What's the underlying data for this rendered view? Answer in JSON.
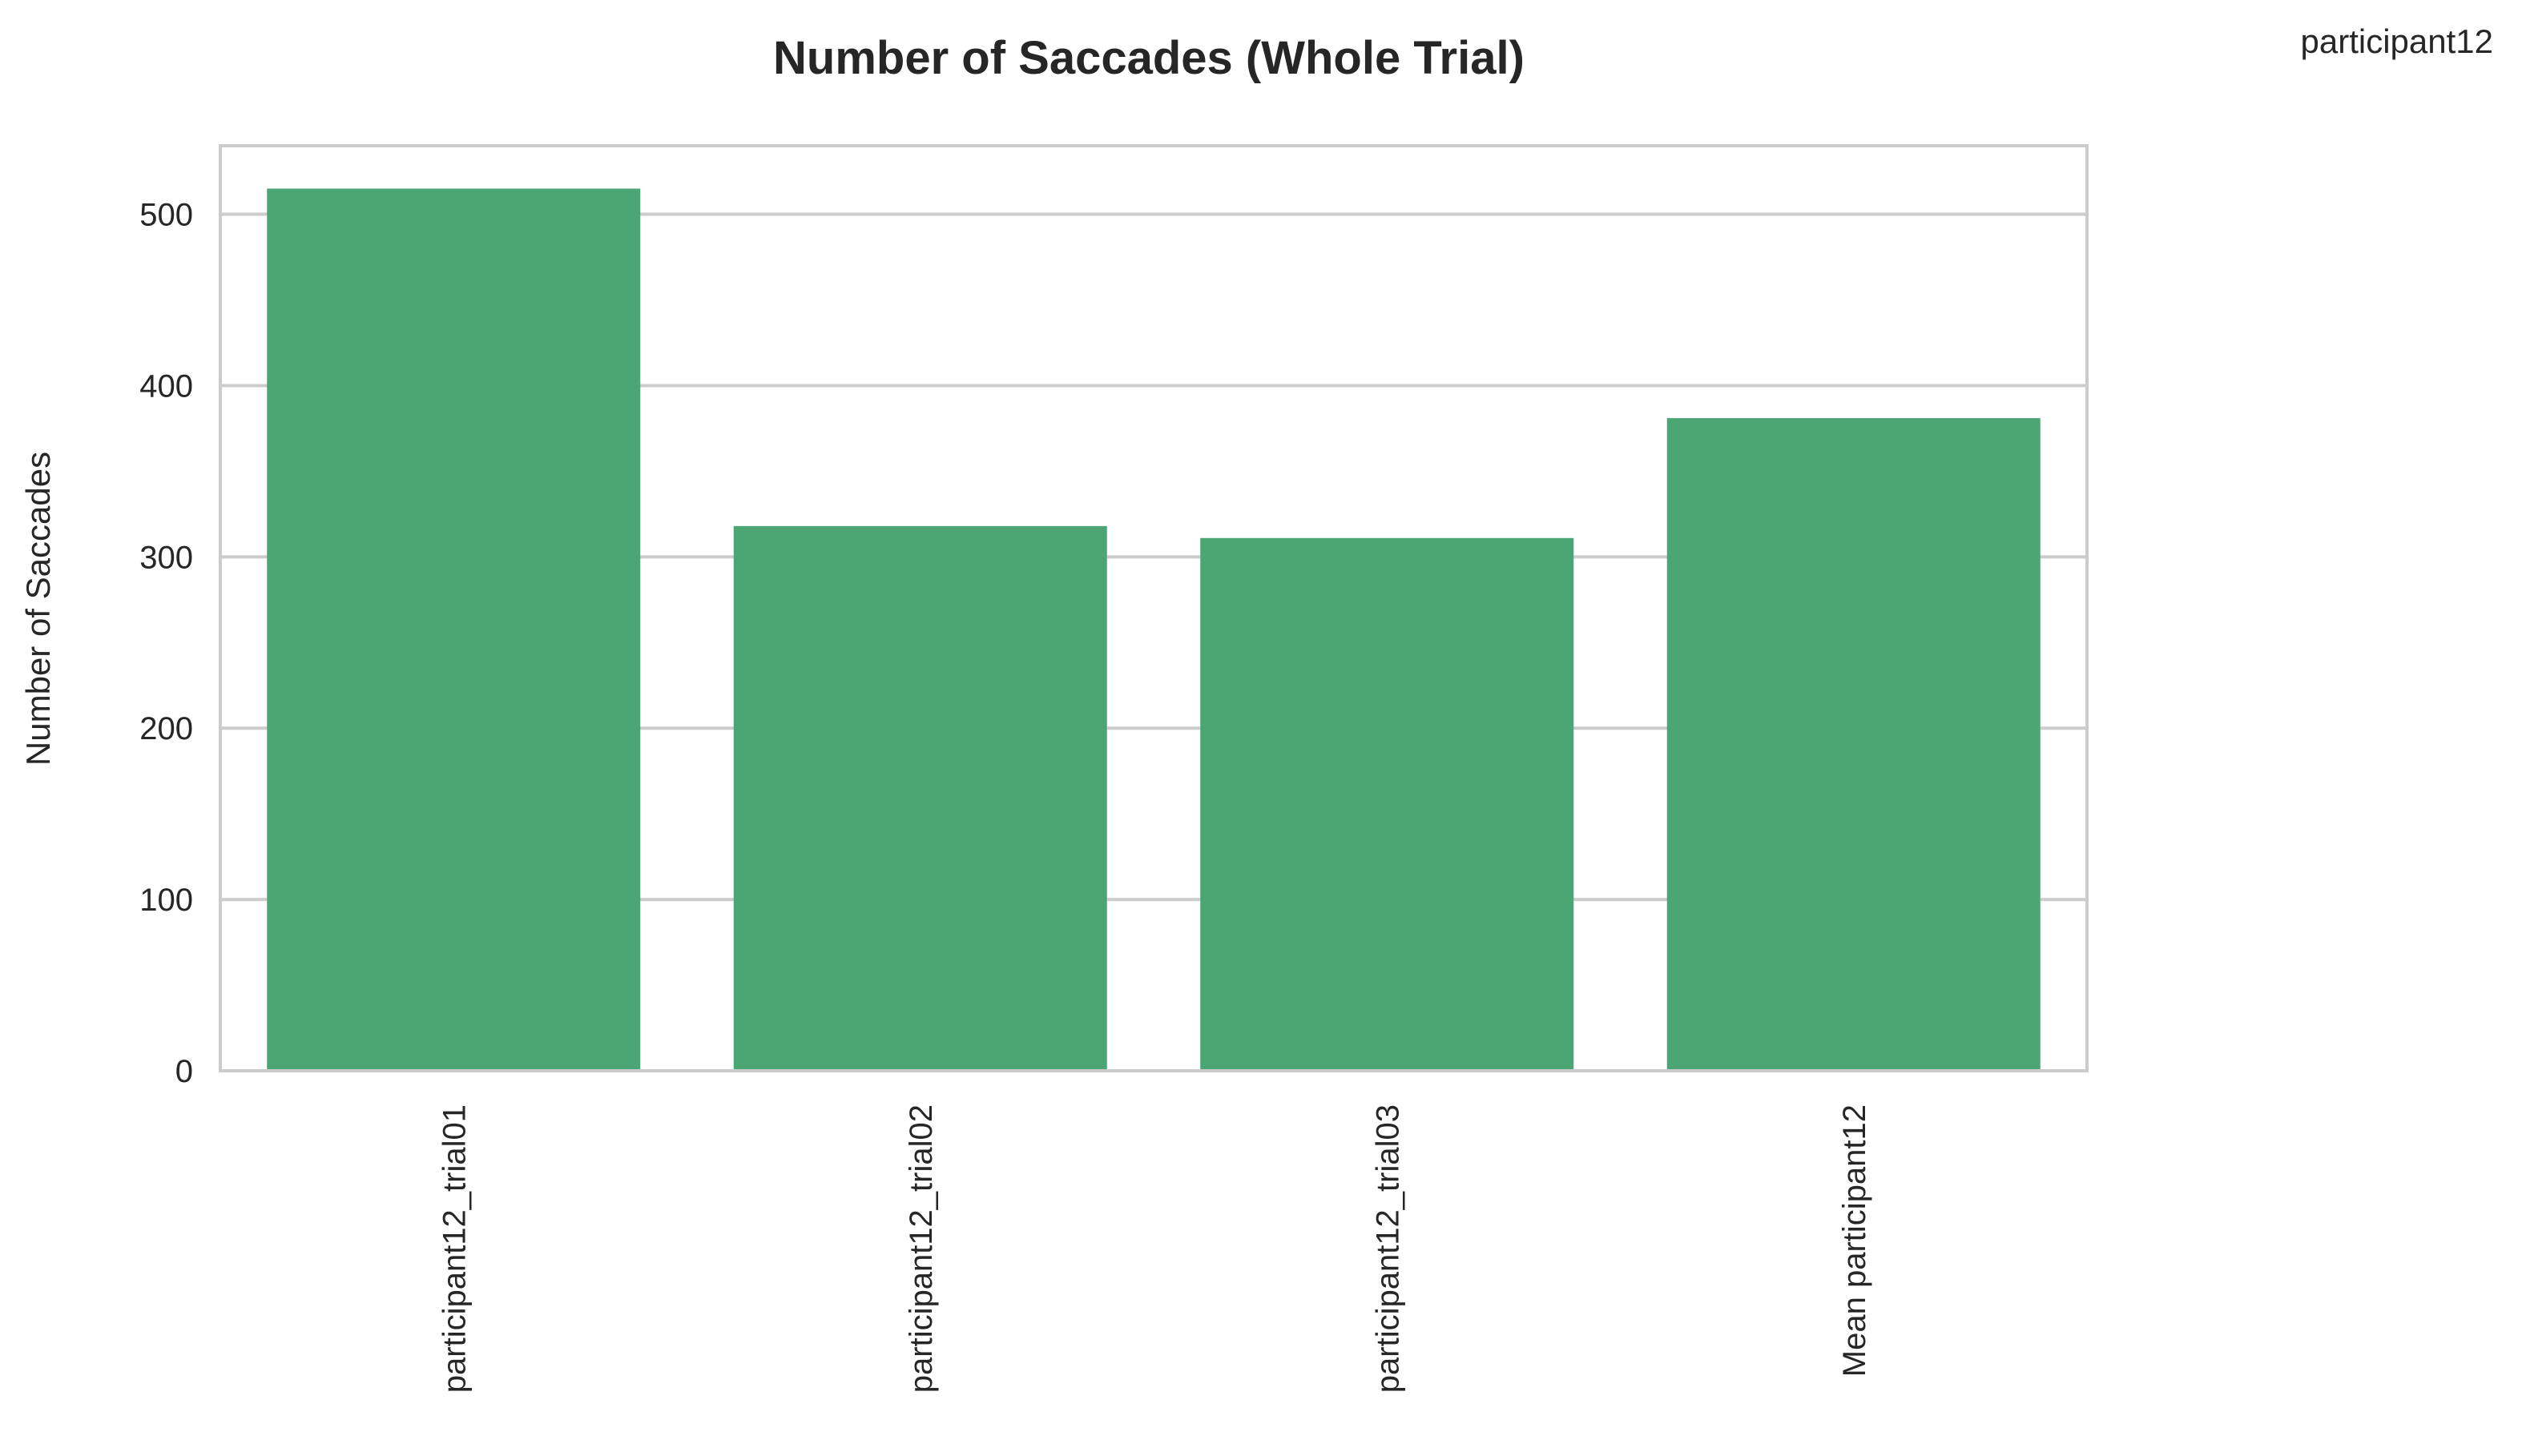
{
  "legend_label": "participant12",
  "colors": {
    "bar": "#4ca574",
    "grid": "#cccccc",
    "frame": "#cccccc",
    "text": "#262626"
  },
  "chart_data": {
    "type": "bar",
    "title": "Number of Saccades (Whole Trial)",
    "xlabel": "",
    "ylabel": "Number of Saccades",
    "categories": [
      "participant12_trial01",
      "participant12_trial02",
      "participant12_trial03",
      "Mean participant12"
    ],
    "series": [
      {
        "name": "participant12",
        "values": [
          515,
          318,
          311,
          381
        ]
      }
    ],
    "ylim": [
      0,
      540
    ],
    "yticks": [
      0,
      100,
      200,
      300,
      400,
      500
    ],
    "grid": true,
    "legend_position": "top-right"
  }
}
